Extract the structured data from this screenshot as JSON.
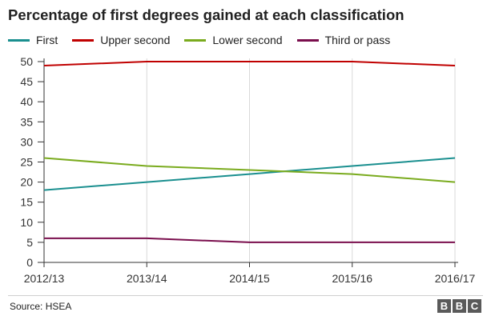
{
  "chart_data": {
    "type": "line",
    "title": "Percentage of first degrees gained at each classification",
    "categories": [
      "2012/13",
      "2013/14",
      "2014/15",
      "2015/16",
      "2016/17"
    ],
    "ylim": [
      0,
      50
    ],
    "yticks": [
      "0",
      "5",
      "10",
      "15",
      "20",
      "25",
      "30",
      "35",
      "40",
      "45",
      "50"
    ],
    "grid": "vertical",
    "legend_position": "top-left",
    "xlabel": "",
    "ylabel": "",
    "series": [
      {
        "name": "First",
        "color": "#1a8f8f",
        "values": [
          18,
          20,
          22,
          24,
          26
        ]
      },
      {
        "name": "Upper second",
        "color": "#c00000",
        "values": [
          49,
          50,
          50,
          50,
          49
        ]
      },
      {
        "name": "Lower second",
        "color": "#7aab1e",
        "values": [
          26,
          24,
          23,
          22,
          20
        ]
      },
      {
        "name": "Third or pass",
        "color": "#7a0e4d",
        "values": [
          6,
          6,
          5,
          5,
          5
        ]
      }
    ]
  },
  "footer": {
    "source": "Source: HSEA",
    "logo_letters": [
      "B",
      "B",
      "C"
    ]
  }
}
